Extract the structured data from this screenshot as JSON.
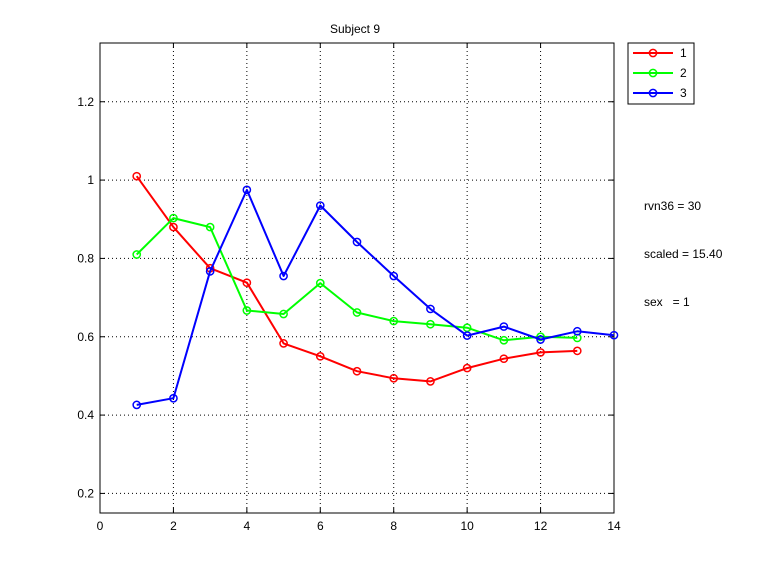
{
  "chart_data": {
    "type": "line",
    "title": "Subject 9",
    "xlabel": "",
    "ylabel": "",
    "xlim": [
      0,
      14
    ],
    "ylim": [
      0.15,
      1.35
    ],
    "xticks": [
      0,
      2,
      4,
      6,
      8,
      10,
      12,
      14
    ],
    "xtick_labels": [
      "0",
      "2",
      "4",
      "6",
      "8",
      "10",
      "12",
      "14"
    ],
    "yticks": [
      0.2,
      0.4,
      0.6,
      0.8,
      1,
      1.2
    ],
    "ytick_labels": [
      "0.2",
      "0.4",
      "0.6",
      "0.8",
      "1",
      "1.2"
    ],
    "grid": true,
    "legend_position": "outside-top-right",
    "series": [
      {
        "name": "1",
        "color": "#ff0000",
        "marker": "circle",
        "x": [
          1,
          2,
          3,
          4,
          5,
          6,
          7,
          8,
          9,
          10,
          11,
          12,
          13
        ],
        "y": [
          1.01,
          0.88,
          0.775,
          0.738,
          0.583,
          0.55,
          0.512,
          0.494,
          0.486,
          0.52,
          0.544,
          0.56,
          0.564
        ]
      },
      {
        "name": "2",
        "color": "#00ff00",
        "marker": "circle",
        "x": [
          1,
          2,
          3,
          4,
          5,
          6,
          7,
          8,
          9,
          10,
          11,
          12,
          13
        ],
        "y": [
          0.81,
          0.903,
          0.88,
          0.667,
          0.658,
          0.737,
          0.662,
          0.64,
          0.632,
          0.623,
          0.591,
          0.6,
          0.597
        ]
      },
      {
        "name": "3",
        "color": "#0000ff",
        "marker": "circle",
        "x": [
          1,
          2,
          3,
          4,
          5,
          6,
          7,
          8,
          9,
          10,
          11,
          12,
          13,
          14
        ],
        "y": [
          0.426,
          0.443,
          0.767,
          0.975,
          0.755,
          0.935,
          0.842,
          0.755,
          0.671,
          0.603,
          0.626,
          0.593,
          0.614,
          0.604
        ]
      }
    ]
  },
  "annotation": {
    "lines": [
      "rvn36 = 30",
      "scaled = 15.40",
      "sex   = 1"
    ]
  },
  "colors": {
    "axis": "#000000",
    "grid": "#000000",
    "background": "#ffffff"
  }
}
